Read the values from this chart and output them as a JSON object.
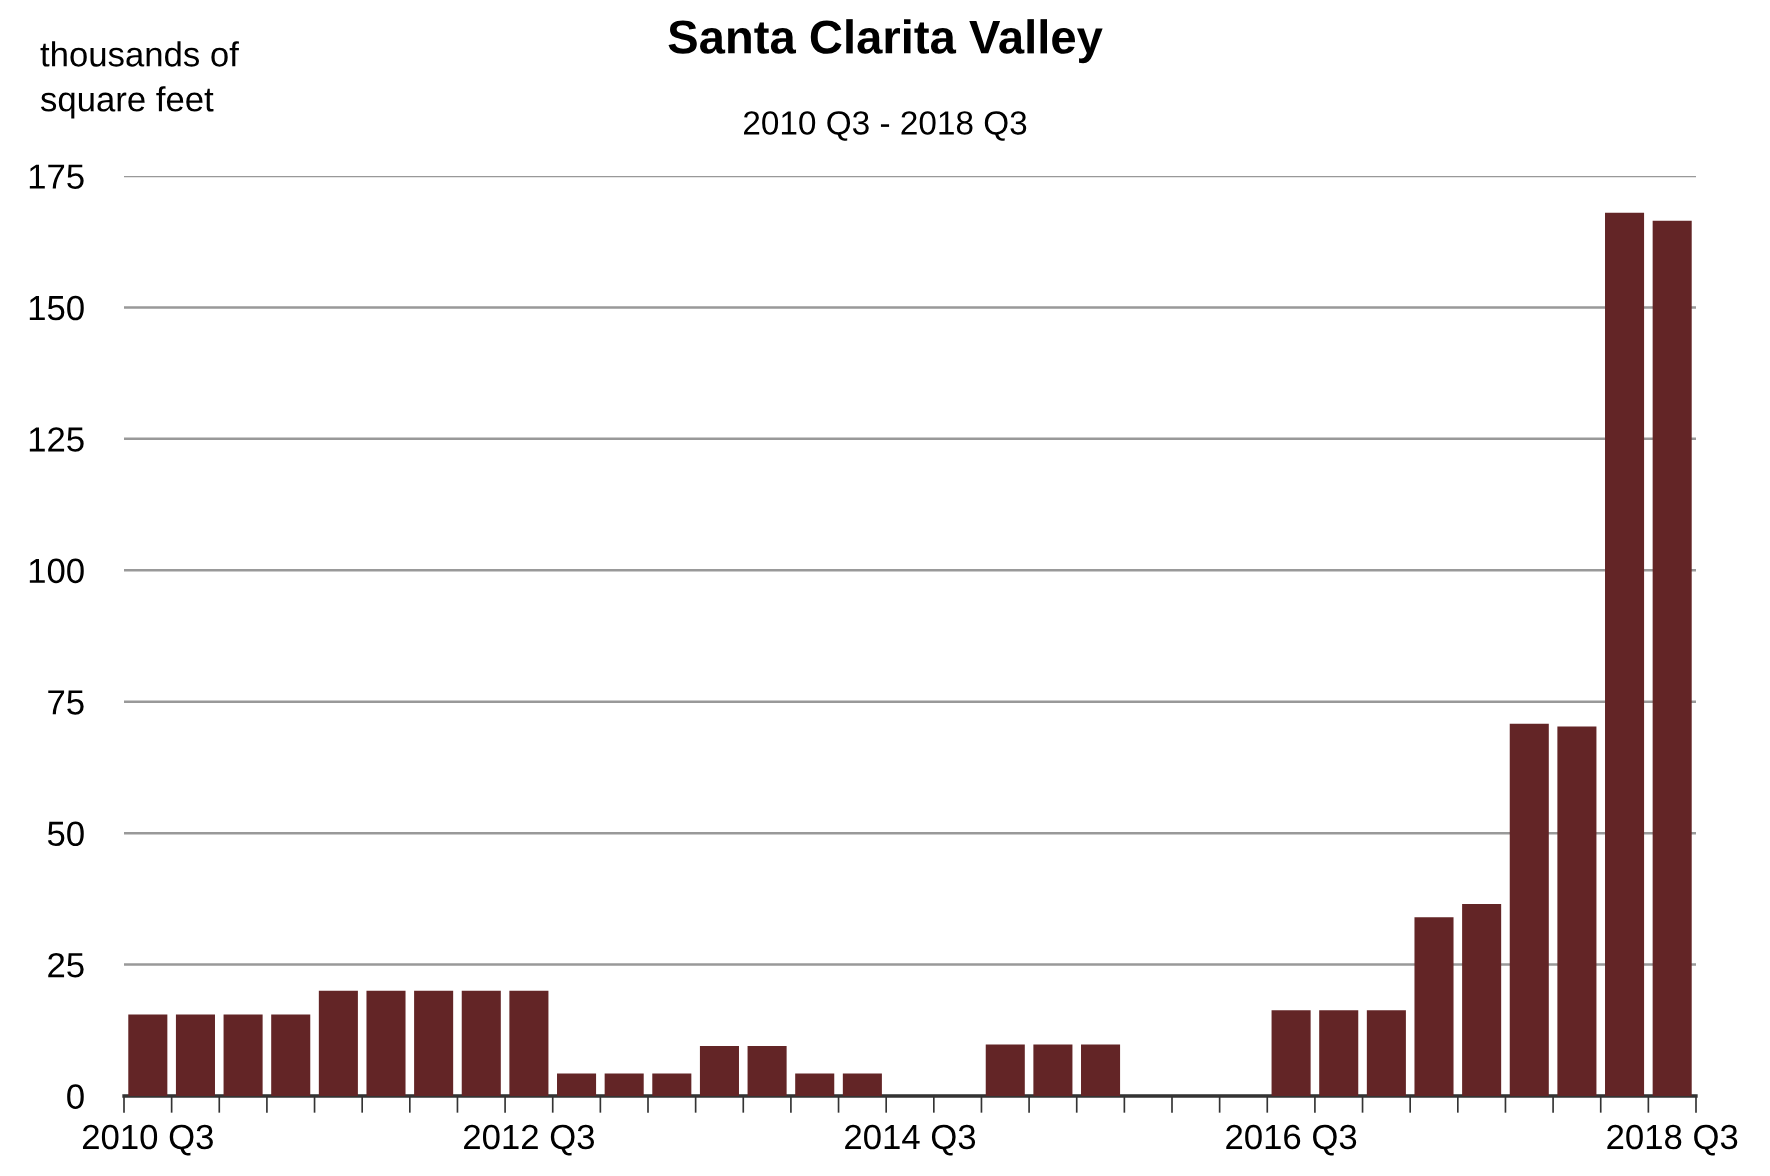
{
  "chart_data": {
    "type": "bar",
    "title": "Santa Clarita Valley",
    "subtitle": "2010 Q3 - 2018 Q3",
    "ylabel": "thousands of\nsquare feet",
    "categories": [
      "2010 Q3",
      null,
      null,
      null,
      null,
      null,
      null,
      null,
      "2012 Q3",
      null,
      null,
      null,
      null,
      null,
      null,
      null,
      "2014 Q3",
      null,
      null,
      null,
      null,
      null,
      null,
      null,
      "2016 Q3",
      null,
      null,
      null,
      null,
      null,
      null,
      null,
      "2018 Q3"
    ],
    "values": [
      15.5,
      15.5,
      15.5,
      15.5,
      20,
      20,
      20,
      20,
      20,
      4.3,
      4.3,
      4.3,
      9.5,
      9.5,
      4.3,
      4.3,
      0,
      0,
      9.8,
      9.8,
      9.8,
      0,
      0,
      0,
      16.3,
      16.3,
      16.3,
      34,
      36.5,
      70.8,
      70.3,
      168,
      166.5
    ],
    "color": "#632526",
    "ylim": [
      0,
      175
    ],
    "yticks": [
      0,
      25,
      50,
      75,
      100,
      125,
      150,
      175
    ],
    "grid": "y",
    "legend": false
  }
}
